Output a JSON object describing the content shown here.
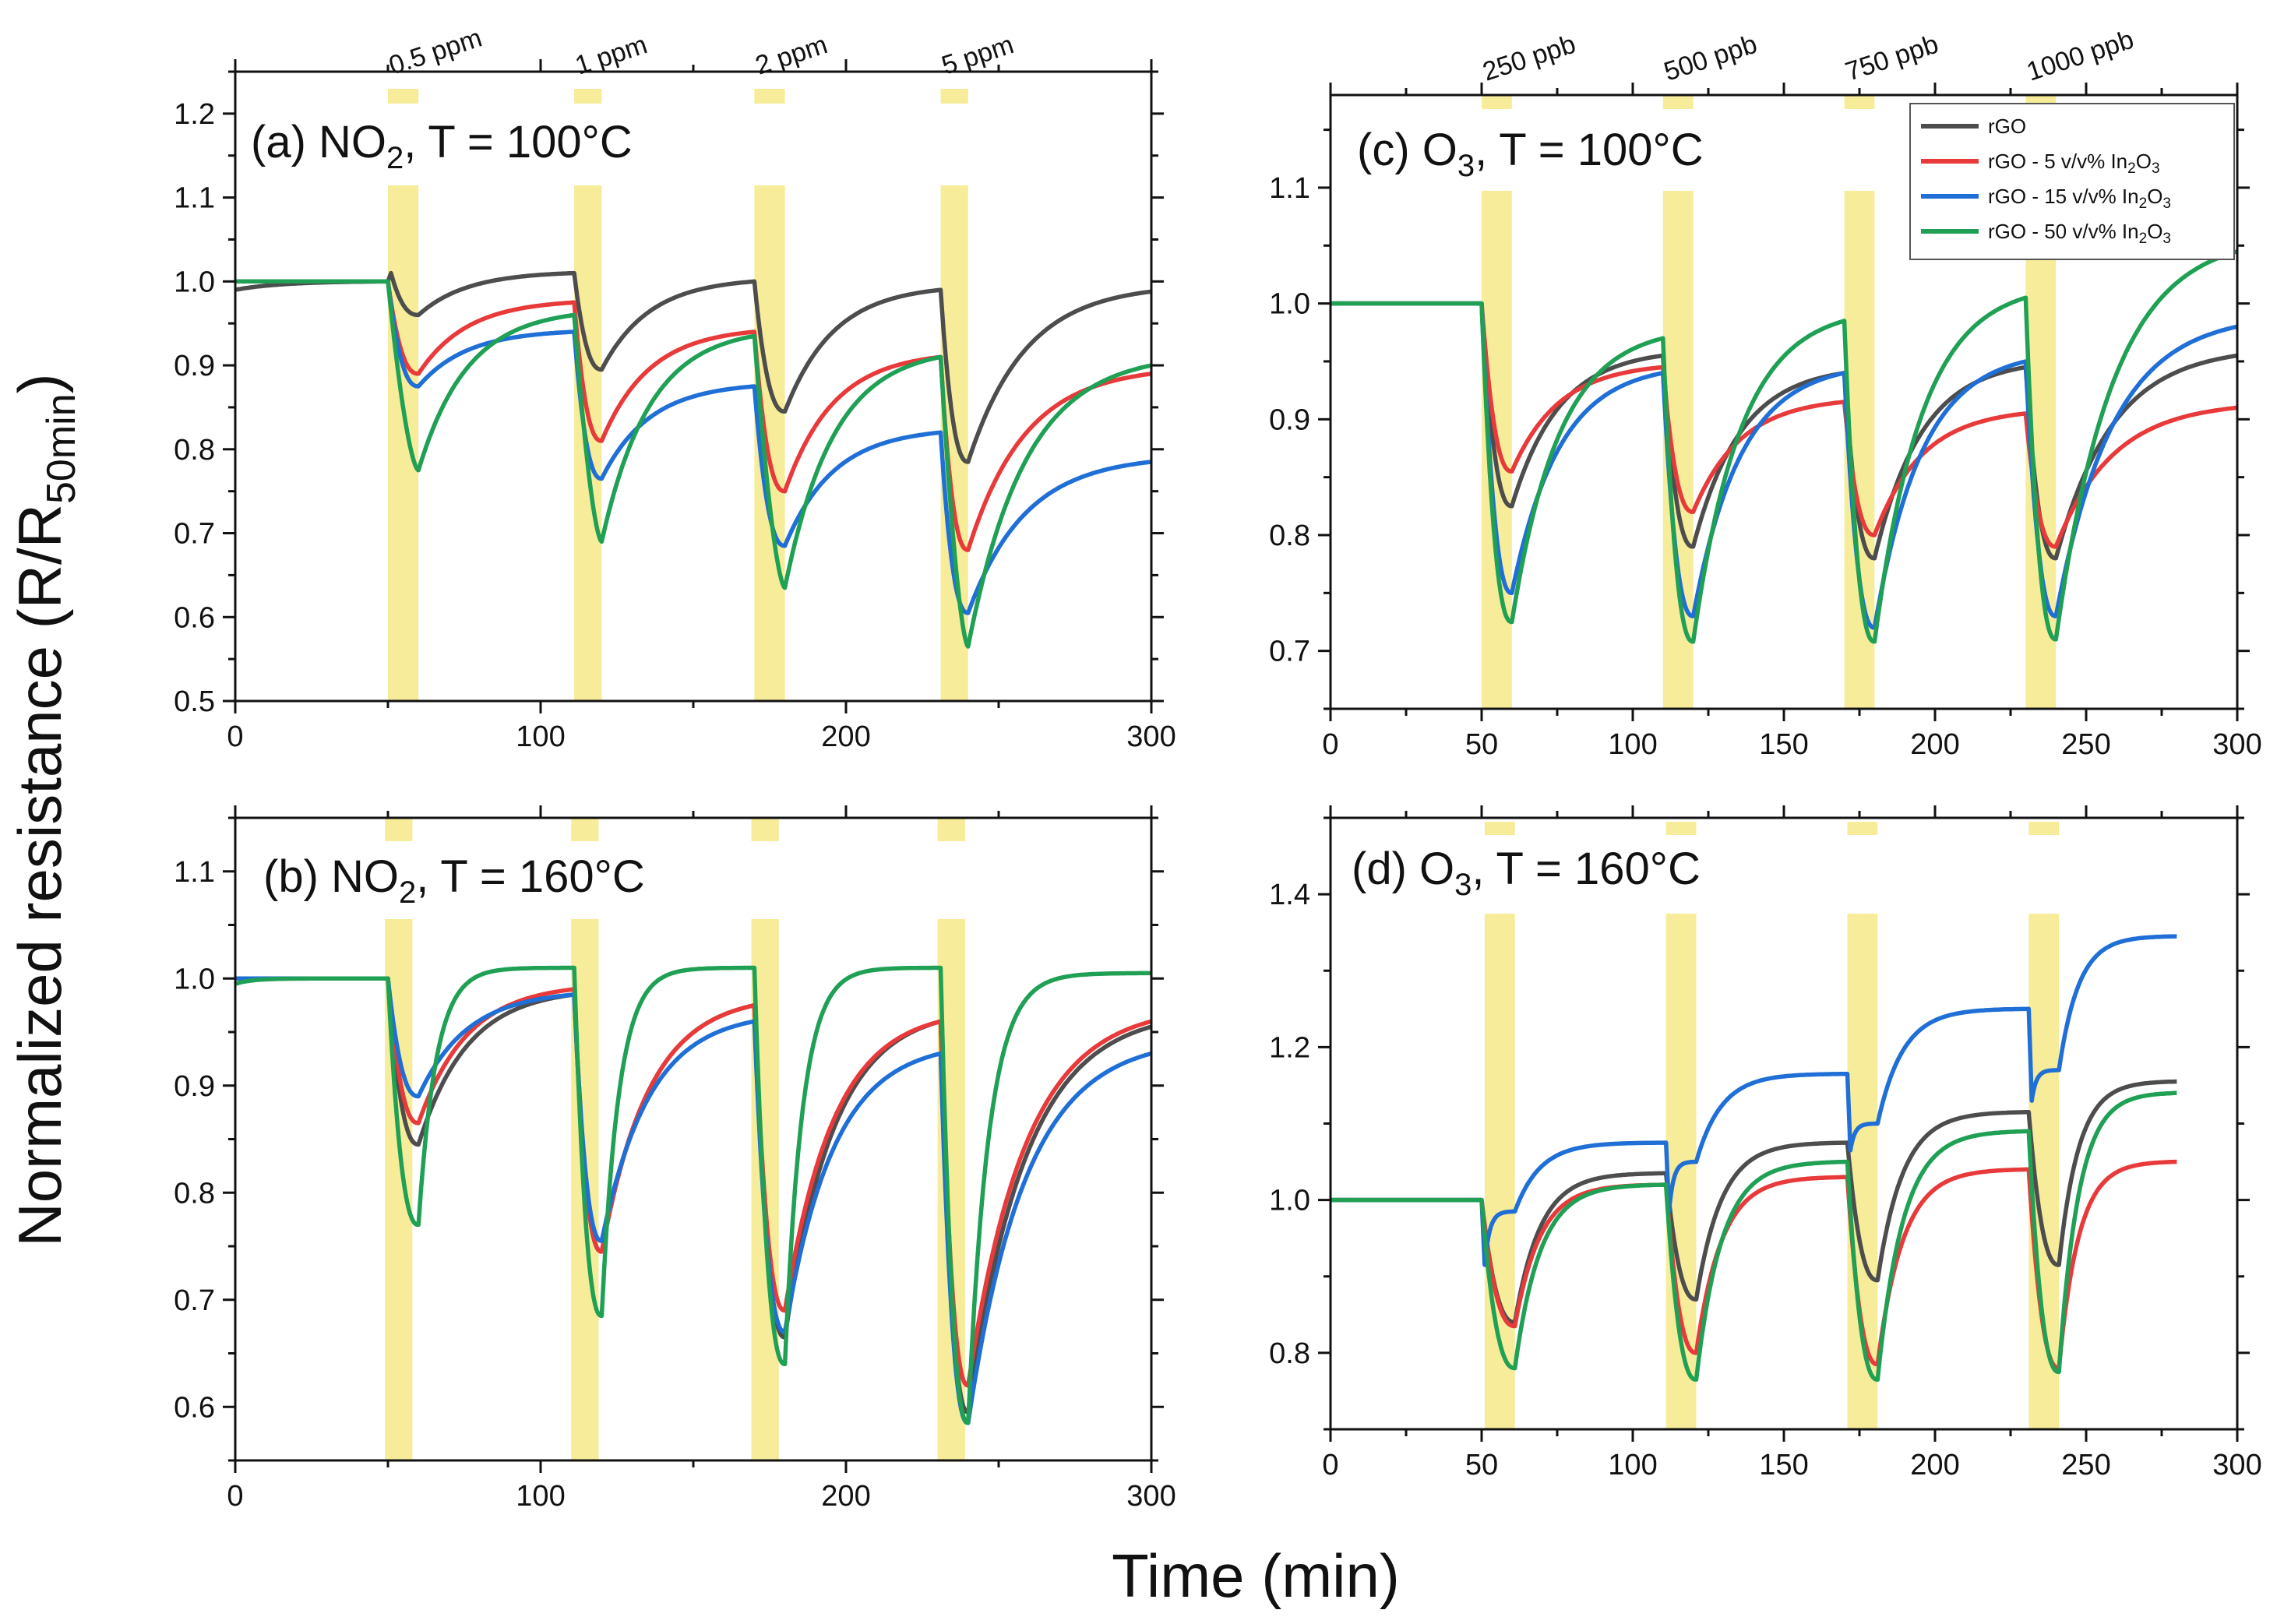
{
  "figure": {
    "ylabel": "Normalized resistance (R/R",
    "ylabel_sub": "50min",
    "ylabel_close": ")",
    "xlabel": "Time (min)"
  },
  "legend": [
    {
      "name": "rGO",
      "sub": "",
      "suffix": "",
      "color": "#4d4d4d"
    },
    {
      "name": "rGO - 5 v/v% In",
      "sub": "2",
      "suffix": "O",
      "sub2": "3",
      "color": "#e83a3a"
    },
    {
      "name": "rGO - 15 v/v% In",
      "sub": "2",
      "suffix": "O",
      "sub2": "3",
      "color": "#1f6fd6"
    },
    {
      "name": "rGO - 50 v/v% In",
      "sub": "2",
      "suffix": "O",
      "sub2": "3",
      "color": "#1fa055"
    }
  ],
  "colors": {
    "band": "#f6ec99",
    "frame": "#111111"
  },
  "chart_data": [
    {
      "id": "a",
      "type": "line",
      "title_pre": "(a) NO",
      "title_sub": "2",
      "title_post": ", T = 100°C",
      "xlim": [
        0,
        300
      ],
      "ylim": [
        0.5,
        1.25
      ],
      "xticks": [
        0,
        100,
        200,
        300
      ],
      "xminor": 50,
      "yticks": [
        0.5,
        0.6,
        0.7,
        0.8,
        0.9,
        1.0,
        1.1,
        1.2
      ],
      "yminor": 0.05,
      "ydec": 1,
      "bands": [
        [
          50,
          60
        ],
        [
          111,
          120
        ],
        [
          170,
          180
        ],
        [
          231,
          240
        ]
      ],
      "band_labels": [
        "0.5 ppm",
        "1 ppm",
        "2 ppm",
        "5 ppm"
      ],
      "series": [
        {
          "name": "rGO",
          "color": "#4d4d4d",
          "base": 1.0,
          "fall": "fast",
          "drops": [
            0.05,
            0.11,
            0.15,
            0.2
          ],
          "end": 0.98,
          "base_start": 0.99,
          "points": [
            [
              0,
              0.99
            ],
            [
              50,
              1.0
            ],
            [
              51,
              1.01
            ],
            [
              60,
              0.96
            ],
            [
              111,
              1.01
            ],
            [
              120,
              0.895
            ],
            [
              170,
              1.0
            ],
            [
              180,
              0.845
            ],
            [
              231,
              0.99
            ],
            [
              240,
              0.785
            ],
            [
              300,
              0.988
            ]
          ]
        },
        {
          "name": "rGO - 5 v/v% In2O3",
          "color": "#e83a3a",
          "base": 1.0,
          "fall": "mid",
          "points": [
            [
              0,
              1.0
            ],
            [
              50,
              1.0
            ],
            [
              60,
              0.89
            ],
            [
              111,
              0.975
            ],
            [
              120,
              0.81
            ],
            [
              170,
              0.94
            ],
            [
              180,
              0.75
            ],
            [
              231,
              0.91
            ],
            [
              240,
              0.68
            ],
            [
              300,
              0.89
            ]
          ]
        },
        {
          "name": "rGO - 15 v/v% In2O3",
          "color": "#1f6fd6",
          "base": 1.0,
          "fall": "mid",
          "points": [
            [
              0,
              1.0
            ],
            [
              50,
              1.0
            ],
            [
              60,
              0.875
            ],
            [
              111,
              0.94
            ],
            [
              120,
              0.765
            ],
            [
              170,
              0.875
            ],
            [
              180,
              0.685
            ],
            [
              231,
              0.82
            ],
            [
              240,
              0.605
            ],
            [
              300,
              0.785
            ]
          ]
        },
        {
          "name": "rGO - 50 v/v% In2O3",
          "color": "#1fa055",
          "base": 1.0,
          "fall": "slow",
          "points": [
            [
              0,
              1.0
            ],
            [
              50,
              1.0
            ],
            [
              60,
              0.775
            ],
            [
              111,
              0.96
            ],
            [
              120,
              0.69
            ],
            [
              170,
              0.935
            ],
            [
              180,
              0.635
            ],
            [
              231,
              0.91
            ],
            [
              240,
              0.565
            ],
            [
              300,
              0.9
            ]
          ]
        }
      ]
    },
    {
      "id": "b",
      "type": "line",
      "title_pre": "(b) NO",
      "title_sub": "2",
      "title_post": ", T = 160°C",
      "xlim": [
        0,
        300
      ],
      "ylim": [
        0.55,
        1.15
      ],
      "xticks": [
        0,
        100,
        200,
        300
      ],
      "xminor": 50,
      "yticks": [
        0.6,
        0.7,
        0.8,
        0.9,
        1.0,
        1.1
      ],
      "yminor": 0.05,
      "ydec": 1,
      "bands": [
        [
          49,
          58
        ],
        [
          110,
          119
        ],
        [
          169,
          178
        ],
        [
          230,
          239
        ]
      ],
      "band_labels": [],
      "series": [
        {
          "name": "rGO",
          "color": "#4d4d4d",
          "fall": "mid",
          "points": [
            [
              0,
              1.0
            ],
            [
              50,
              1.0
            ],
            [
              60,
              0.845
            ],
            [
              111,
              0.985
            ],
            [
              120,
              0.745
            ],
            [
              170,
              0.975
            ],
            [
              180,
              0.665
            ],
            [
              231,
              0.96
            ],
            [
              240,
              0.595
            ],
            [
              300,
              0.955
            ]
          ]
        },
        {
          "name": "rGO - 5 v/v% In2O3",
          "color": "#e83a3a",
          "fall": "mid",
          "points": [
            [
              0,
              1.0
            ],
            [
              50,
              1.0
            ],
            [
              60,
              0.865
            ],
            [
              111,
              0.99
            ],
            [
              120,
              0.745
            ],
            [
              170,
              0.975
            ],
            [
              180,
              0.69
            ],
            [
              231,
              0.96
            ],
            [
              240,
              0.62
            ],
            [
              300,
              0.96
            ]
          ]
        },
        {
          "name": "rGO - 15 v/v% In2O3",
          "color": "#1f6fd6",
          "fall": "mid",
          "points": [
            [
              0,
              1.0
            ],
            [
              50,
              1.0
            ],
            [
              60,
              0.89
            ],
            [
              111,
              0.985
            ],
            [
              120,
              0.755
            ],
            [
              170,
              0.96
            ],
            [
              180,
              0.67
            ],
            [
              231,
              0.93
            ],
            [
              240,
              0.585
            ],
            [
              300,
              0.93
            ]
          ]
        },
        {
          "name": "rGO - 50 v/v% In2O3",
          "color": "#1fa055",
          "fall": "fastrec",
          "points": [
            [
              0,
              0.995
            ],
            [
              50,
              1.0
            ],
            [
              60,
              0.77
            ],
            [
              111,
              1.01
            ],
            [
              120,
              0.685
            ],
            [
              170,
              1.01
            ],
            [
              180,
              0.64
            ],
            [
              231,
              1.01
            ],
            [
              240,
              0.585
            ],
            [
              300,
              1.005
            ]
          ]
        }
      ]
    },
    {
      "id": "c",
      "type": "line",
      "title_pre": "(c) O",
      "title_sub": "3",
      "title_post": ", T = 100°C",
      "xlim": [
        0,
        300
      ],
      "ylim": [
        0.65,
        1.18
      ],
      "xticks": [
        0,
        50,
        100,
        150,
        200,
        250,
        300
      ],
      "xminor": 25,
      "yticks": [
        0.7,
        0.8,
        0.9,
        1.0,
        1.1
      ],
      "yminor": 0.05,
      "ydec": 1,
      "bands": [
        [
          50,
          60
        ],
        [
          110,
          120
        ],
        [
          170,
          180
        ],
        [
          230,
          240
        ]
      ],
      "band_labels": [
        "250 ppb",
        "500 ppb",
        "750 ppb",
        "1000 ppb"
      ],
      "series": [
        {
          "name": "rGO",
          "color": "#4d4d4d",
          "fall": "mid",
          "points": [
            [
              0,
              1.0
            ],
            [
              50,
              1.0
            ],
            [
              60,
              0.825
            ],
            [
              110,
              0.955
            ],
            [
              120,
              0.79
            ],
            [
              170,
              0.94
            ],
            [
              180,
              0.78
            ],
            [
              230,
              0.945
            ],
            [
              240,
              0.78
            ],
            [
              300,
              0.955
            ]
          ]
        },
        {
          "name": "rGO - 5 v/v% In2O3",
          "color": "#e83a3a",
          "fall": "mid",
          "points": [
            [
              0,
              1.0
            ],
            [
              50,
              1.0
            ],
            [
              60,
              0.855
            ],
            [
              110,
              0.945
            ],
            [
              120,
              0.82
            ],
            [
              170,
              0.915
            ],
            [
              180,
              0.8
            ],
            [
              230,
              0.905
            ],
            [
              240,
              0.79
            ],
            [
              300,
              0.91
            ]
          ]
        },
        {
          "name": "rGO - 15 v/v% In2O3",
          "color": "#1f6fd6",
          "fall": "mid",
          "points": [
            [
              0,
              1.0
            ],
            [
              50,
              1.0
            ],
            [
              60,
              0.75
            ],
            [
              110,
              0.94
            ],
            [
              120,
              0.73
            ],
            [
              170,
              0.94
            ],
            [
              180,
              0.72
            ],
            [
              230,
              0.95
            ],
            [
              240,
              0.73
            ],
            [
              300,
              0.98
            ]
          ]
        },
        {
          "name": "rGO - 50 v/v% In2O3",
          "color": "#1fa055",
          "fall": "mid",
          "points": [
            [
              0,
              1.0
            ],
            [
              50,
              1.0
            ],
            [
              60,
              0.725
            ],
            [
              110,
              0.97
            ],
            [
              120,
              0.708
            ],
            [
              170,
              0.985
            ],
            [
              180,
              0.708
            ],
            [
              230,
              1.005
            ],
            [
              240,
              0.71
            ],
            [
              300,
              1.045
            ]
          ]
        }
      ]
    },
    {
      "id": "d",
      "type": "line",
      "title_pre": "(d) O",
      "title_sub": "3",
      "title_post": ", T = 160°C",
      "xlim": [
        0,
        300
      ],
      "ylim": [
        0.7,
        1.5
      ],
      "xticks": [
        0,
        50,
        100,
        150,
        200,
        250,
        300
      ],
      "xminor": 25,
      "yticks": [
        0.8,
        1.0,
        1.2,
        1.4
      ],
      "yminor": 0.1,
      "ydec": 1,
      "bands": [
        [
          51,
          61
        ],
        [
          111,
          121
        ],
        [
          171,
          181
        ],
        [
          231,
          241
        ]
      ],
      "band_labels": [],
      "series": [
        {
          "name": "rGO",
          "color": "#4d4d4d",
          "fall": "rise",
          "points": [
            [
              0,
              1.0
            ],
            [
              50,
              1.0
            ],
            [
              61,
              0.84
            ],
            [
              111,
              1.035
            ],
            [
              121,
              0.87
            ],
            [
              171,
              1.075
            ],
            [
              181,
              0.895
            ],
            [
              231,
              1.115
            ],
            [
              241,
              0.915
            ],
            [
              280,
              1.155
            ]
          ]
        },
        {
          "name": "rGO - 5 v/v% In2O3",
          "color": "#e83a3a",
          "fall": "rise",
          "points": [
            [
              0,
              1.0
            ],
            [
              50,
              1.0
            ],
            [
              61,
              0.835
            ],
            [
              111,
              1.02
            ],
            [
              121,
              0.8
            ],
            [
              171,
              1.03
            ],
            [
              181,
              0.785
            ],
            [
              231,
              1.04
            ],
            [
              241,
              0.78
            ],
            [
              280,
              1.05
            ]
          ]
        },
        {
          "name": "rGO - 15 v/v% In2O3",
          "color": "#1f6fd6",
          "fall": "riseb",
          "points": [
            [
              0,
              1.0
            ],
            [
              50,
              1.0
            ],
            [
              51,
              0.915
            ],
            [
              61,
              0.985
            ],
            [
              111,
              1.075
            ],
            [
              112,
              0.985
            ],
            [
              121,
              1.05
            ],
            [
              171,
              1.165
            ],
            [
              172,
              1.065
            ],
            [
              181,
              1.1
            ],
            [
              231,
              1.25
            ],
            [
              232,
              1.13
            ],
            [
              241,
              1.17
            ],
            [
              280,
              1.345
            ]
          ]
        },
        {
          "name": "rGO - 50 v/v% In2O3",
          "color": "#1fa055",
          "fall": "rise",
          "points": [
            [
              0,
              1.0
            ],
            [
              50,
              1.0
            ],
            [
              61,
              0.78
            ],
            [
              111,
              1.02
            ],
            [
              121,
              0.765
            ],
            [
              171,
              1.05
            ],
            [
              181,
              0.765
            ],
            [
              231,
              1.09
            ],
            [
              241,
              0.775
            ],
            [
              280,
              1.14
            ]
          ]
        }
      ]
    }
  ]
}
